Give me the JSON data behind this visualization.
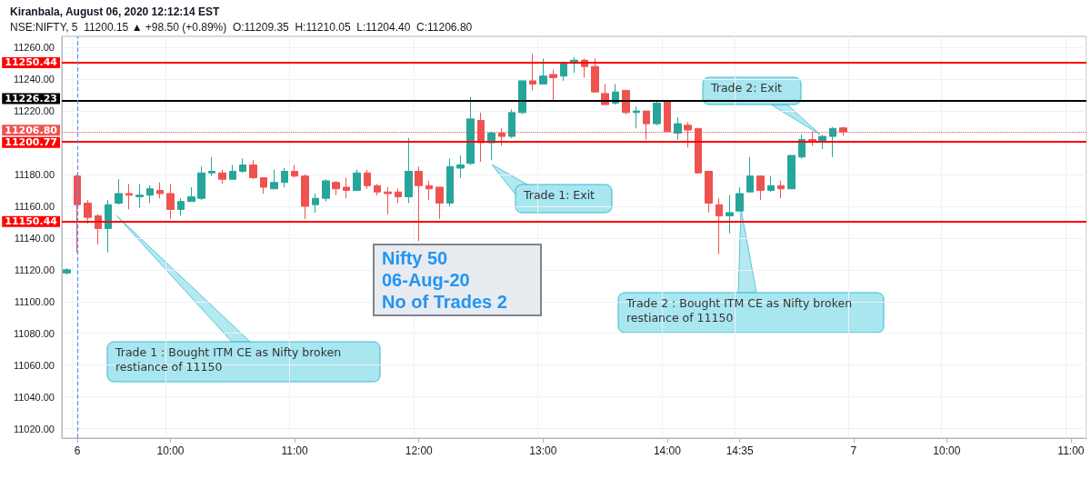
{
  "chart_data": {
    "type": "candlestick",
    "title": "Kiranbala, August 06, 2020 12:12:14 EST",
    "subtitle": "NSE:NIFTY, 5  11200.15 ▲ +98.50 (+0.89%)  O:11209.35  H:11210.05  L:11204.40  C:11206.80",
    "categories": [
      null,
      "6",
      null,
      null,
      null,
      null,
      null,
      null,
      null,
      null,
      "10:00",
      null,
      null,
      null,
      null,
      null,
      null,
      null,
      null,
      null,
      null,
      null,
      "11:00",
      null,
      null,
      null,
      null,
      null,
      null,
      null,
      null,
      null,
      null,
      null,
      "12:00",
      null,
      null,
      null,
      null,
      null,
      null,
      null,
      null,
      null,
      null,
      null,
      "13:00",
      null,
      null,
      null,
      null,
      null,
      null,
      null,
      null,
      null,
      null,
      null,
      "14:00",
      null,
      null,
      null,
      null,
      null,
      null,
      "14:35",
      null,
      null,
      null,
      null,
      null,
      null,
      null,
      null,
      null,
      null,
      "7",
      null,
      null,
      null,
      null,
      null,
      null,
      null,
      null,
      "10:00",
      null,
      null,
      null,
      null,
      null,
      null,
      null,
      null,
      null,
      null,
      null,
      "11:00",
      null
    ],
    "ohlc": [
      [
        11118,
        11121,
        11117,
        11120
      ],
      [
        11179,
        11180,
        11131,
        11161
      ],
      [
        11162,
        11164,
        11149,
        11153
      ],
      [
        11154,
        11155,
        11136,
        11146
      ],
      [
        11146,
        11164,
        11131,
        11161
      ],
      [
        11162,
        11177,
        11161,
        11168
      ],
      [
        11168,
        11174,
        11158,
        11167
      ],
      [
        11166,
        11174,
        11159,
        11167
      ],
      [
        11167,
        11173,
        11162,
        11171
      ],
      [
        11170,
        11175,
        11165,
        11168
      ],
      [
        11168,
        11174,
        11152,
        11158
      ],
      [
        11158,
        11165,
        11154,
        11163
      ],
      [
        11163,
        11172,
        11163,
        11166
      ],
      [
        11165,
        11185,
        11164,
        11181
      ],
      [
        11181,
        11191,
        11179,
        11182
      ],
      [
        11181,
        11183,
        11174,
        11177
      ],
      [
        11177,
        11186,
        11177,
        11182
      ],
      [
        11182,
        11190,
        11181,
        11186
      ],
      [
        11186,
        11189,
        11177,
        11178
      ],
      [
        11178,
        11178,
        11168,
        11172
      ],
      [
        11171,
        11183,
        11171,
        11175
      ],
      [
        11175,
        11184,
        11172,
        11182
      ],
      [
        11182,
        11186,
        11178,
        11179
      ],
      [
        11179,
        11180,
        11152,
        11160
      ],
      [
        11161,
        11168,
        11156,
        11165
      ],
      [
        11165,
        11177,
        11163,
        11176
      ],
      [
        11175,
        11176,
        11167,
        11171
      ],
      [
        11172,
        11178,
        11165,
        11170
      ],
      [
        11170,
        11183,
        11170,
        11181
      ],
      [
        11181,
        11183,
        11171,
        11173
      ],
      [
        11173,
        11174,
        11167,
        11169
      ],
      [
        11169,
        11172,
        11155,
        11168
      ],
      [
        11169,
        11171,
        11162,
        11166
      ],
      [
        11166,
        11203,
        11162,
        11182
      ],
      [
        11182,
        11185,
        11138,
        11173
      ],
      [
        11173,
        11176,
        11164,
        11171
      ],
      [
        11172,
        11172,
        11152,
        11162
      ],
      [
        11162,
        11190,
        11160,
        11185
      ],
      [
        11184,
        11192,
        11178,
        11186
      ],
      [
        11187,
        11229,
        11186,
        11215
      ],
      [
        11214,
        11219,
        11188,
        11200
      ],
      [
        11200,
        11207,
        11189,
        11206
      ],
      [
        11206,
        11209,
        11198,
        11204
      ],
      [
        11204,
        11221,
        11203,
        11219
      ],
      [
        11219,
        11239,
        11218,
        11239
      ],
      [
        11239,
        11256,
        11233,
        11237
      ],
      [
        11237,
        11253,
        11237,
        11242
      ],
      [
        11243,
        11246,
        11227,
        11241
      ],
      [
        11242,
        11251,
        11239,
        11250
      ],
      [
        11250,
        11254,
        11244,
        11252
      ],
      [
        11252,
        11253,
        11241,
        11248
      ],
      [
        11248,
        11253,
        11232,
        11232
      ],
      [
        11231,
        11237,
        11224,
        11224
      ],
      [
        11225,
        11237,
        11224,
        11232
      ],
      [
        11233,
        11233,
        11218,
        11219
      ],
      [
        11219,
        11223,
        11209,
        11220
      ],
      [
        11220,
        11220,
        11202,
        11212
      ],
      [
        11212,
        11226,
        11211,
        11225
      ],
      [
        11226,
        11226,
        11207,
        11207
      ],
      [
        11206,
        11216,
        11202,
        11212
      ],
      [
        11211,
        11213,
        11197,
        11208
      ],
      [
        11209,
        11209,
        11181,
        11181
      ],
      [
        11182,
        11182,
        11156,
        11162
      ],
      [
        11161,
        11165,
        11130,
        11154
      ],
      [
        11154,
        11167,
        11143,
        11156
      ],
      [
        11157,
        11172,
        11157,
        11168
      ],
      [
        11169,
        11191,
        11169,
        11179
      ],
      [
        11179,
        11179,
        11164,
        11170
      ],
      [
        11170,
        11179,
        11169,
        11173
      ],
      [
        11173,
        11176,
        11165,
        11171
      ],
      [
        11171,
        11192,
        11171,
        11192
      ],
      [
        11191,
        11205,
        11190,
        11202
      ],
      [
        11202,
        11207,
        11198,
        11201
      ],
      [
        11201,
        11205,
        11196,
        11204
      ],
      [
        11204,
        11210,
        11191,
        11209
      ],
      [
        11209.35,
        11210.05,
        11204.4,
        11206.8
      ],
      null,
      null,
      null,
      null,
      null,
      null,
      null,
      null,
      null,
      null,
      null,
      null,
      null,
      null,
      null,
      null,
      null,
      null,
      null,
      null,
      null,
      null,
      null
    ],
    "colors": [
      "#26a69a",
      "#ef5350",
      "#ef5350",
      "#ef5350",
      "#26a69a",
      "#26a69a",
      "#ef5350",
      "#26a69a",
      "#26a69a",
      "#ef5350",
      "#ef5350",
      "#26a69a",
      "#26a69a",
      "#26a69a",
      "#26a69a",
      "#ef5350",
      "#26a69a",
      "#26a69a",
      "#ef5350",
      "#ef5350",
      "#26a69a",
      "#26a69a",
      "#ef5350",
      "#ef5350",
      "#26a69a",
      "#26a69a",
      "#ef5350",
      "#ef5350",
      "#26a69a",
      "#ef5350",
      "#ef5350",
      "#ef5350",
      "#ef5350",
      "#26a69a",
      "#ef5350",
      "#ef5350",
      "#ef5350",
      "#26a69a",
      "#26a69a",
      "#26a69a",
      "#ef5350",
      "#26a69a",
      "#ef5350",
      "#26a69a",
      "#26a69a",
      "#ef5350",
      "#26a69a",
      "#ef5350",
      "#26a69a",
      "#26a69a",
      "#ef5350",
      "#ef5350",
      "#ef5350",
      "#26a69a",
      "#ef5350",
      "#26a69a",
      "#ef5350",
      "#26a69a",
      "#ef5350",
      "#26a69a",
      "#ef5350",
      "#ef5350",
      "#ef5350",
      "#ef5350",
      "#26a69a",
      "#26a69a",
      "#26a69a",
      "#ef5350",
      "#26a69a",
      "#ef5350",
      "#26a69a",
      "#26a69a",
      "#ef5350",
      "#26a69a",
      "#26a69a",
      "#ef5350",
      null,
      null,
      null,
      null,
      null,
      null,
      null,
      null,
      null,
      null,
      null,
      null,
      null,
      null,
      null,
      null,
      null,
      null,
      null,
      null,
      null,
      null,
      null
    ],
    "ylim": [
      11014,
      11267
    ],
    "yticks": [
      {
        "value": 11020,
        "label": "11020.00"
      },
      {
        "value": 11040,
        "label": "11040.00"
      },
      {
        "value": 11060,
        "label": "11060.00"
      },
      {
        "value": 11080,
        "label": "11080.00"
      },
      {
        "value": 11100,
        "label": "11100.00"
      },
      {
        "value": 11120,
        "label": "11120.00"
      },
      {
        "value": 11140,
        "label": "11140.00"
      },
      {
        "value": 11160,
        "label": "11160.00"
      },
      {
        "value": 11180,
        "label": "11180.00"
      },
      {
        "value": 11220,
        "label": "11220.00"
      },
      {
        "value": 11240,
        "label": "11240.00"
      },
      {
        "value": 11260,
        "label": "11260.00"
      }
    ],
    "grid": true,
    "ref_lines": [
      {
        "axis": "y",
        "value": 11250.44,
        "label": "11250.44",
        "color": "#ff0000",
        "line_style": "solid"
      },
      {
        "axis": "y",
        "value": 11226.23,
        "label": "11226.23",
        "color": "#000000",
        "line_style": "solid"
      },
      {
        "axis": "y",
        "value": 11206.8,
        "label": "11206.80",
        "color": "#ef5350",
        "line_style": "dotted"
      },
      {
        "axis": "y",
        "value": 11200.77,
        "label": "11200.77",
        "color": "#ff0000",
        "line_style": "solid"
      },
      {
        "axis": "y",
        "value": 11150.44,
        "label": "11150.44",
        "color": "#ff0000",
        "line_style": "solid"
      },
      {
        "axis": "x",
        "value": "6",
        "color": "#5b8def",
        "line_style": "dashed"
      }
    ],
    "annotations": [
      "Trade 1 : Bought ITM CE as Nifty broken restiance of 11150",
      "Trade 1: Exit",
      "Trade 2: Exit",
      "Trade 2 : Bought ITM CE as Nifty broken restiance of 11150",
      "Nifty 50\n06-Aug-20\nNo of Trades 2"
    ]
  }
}
